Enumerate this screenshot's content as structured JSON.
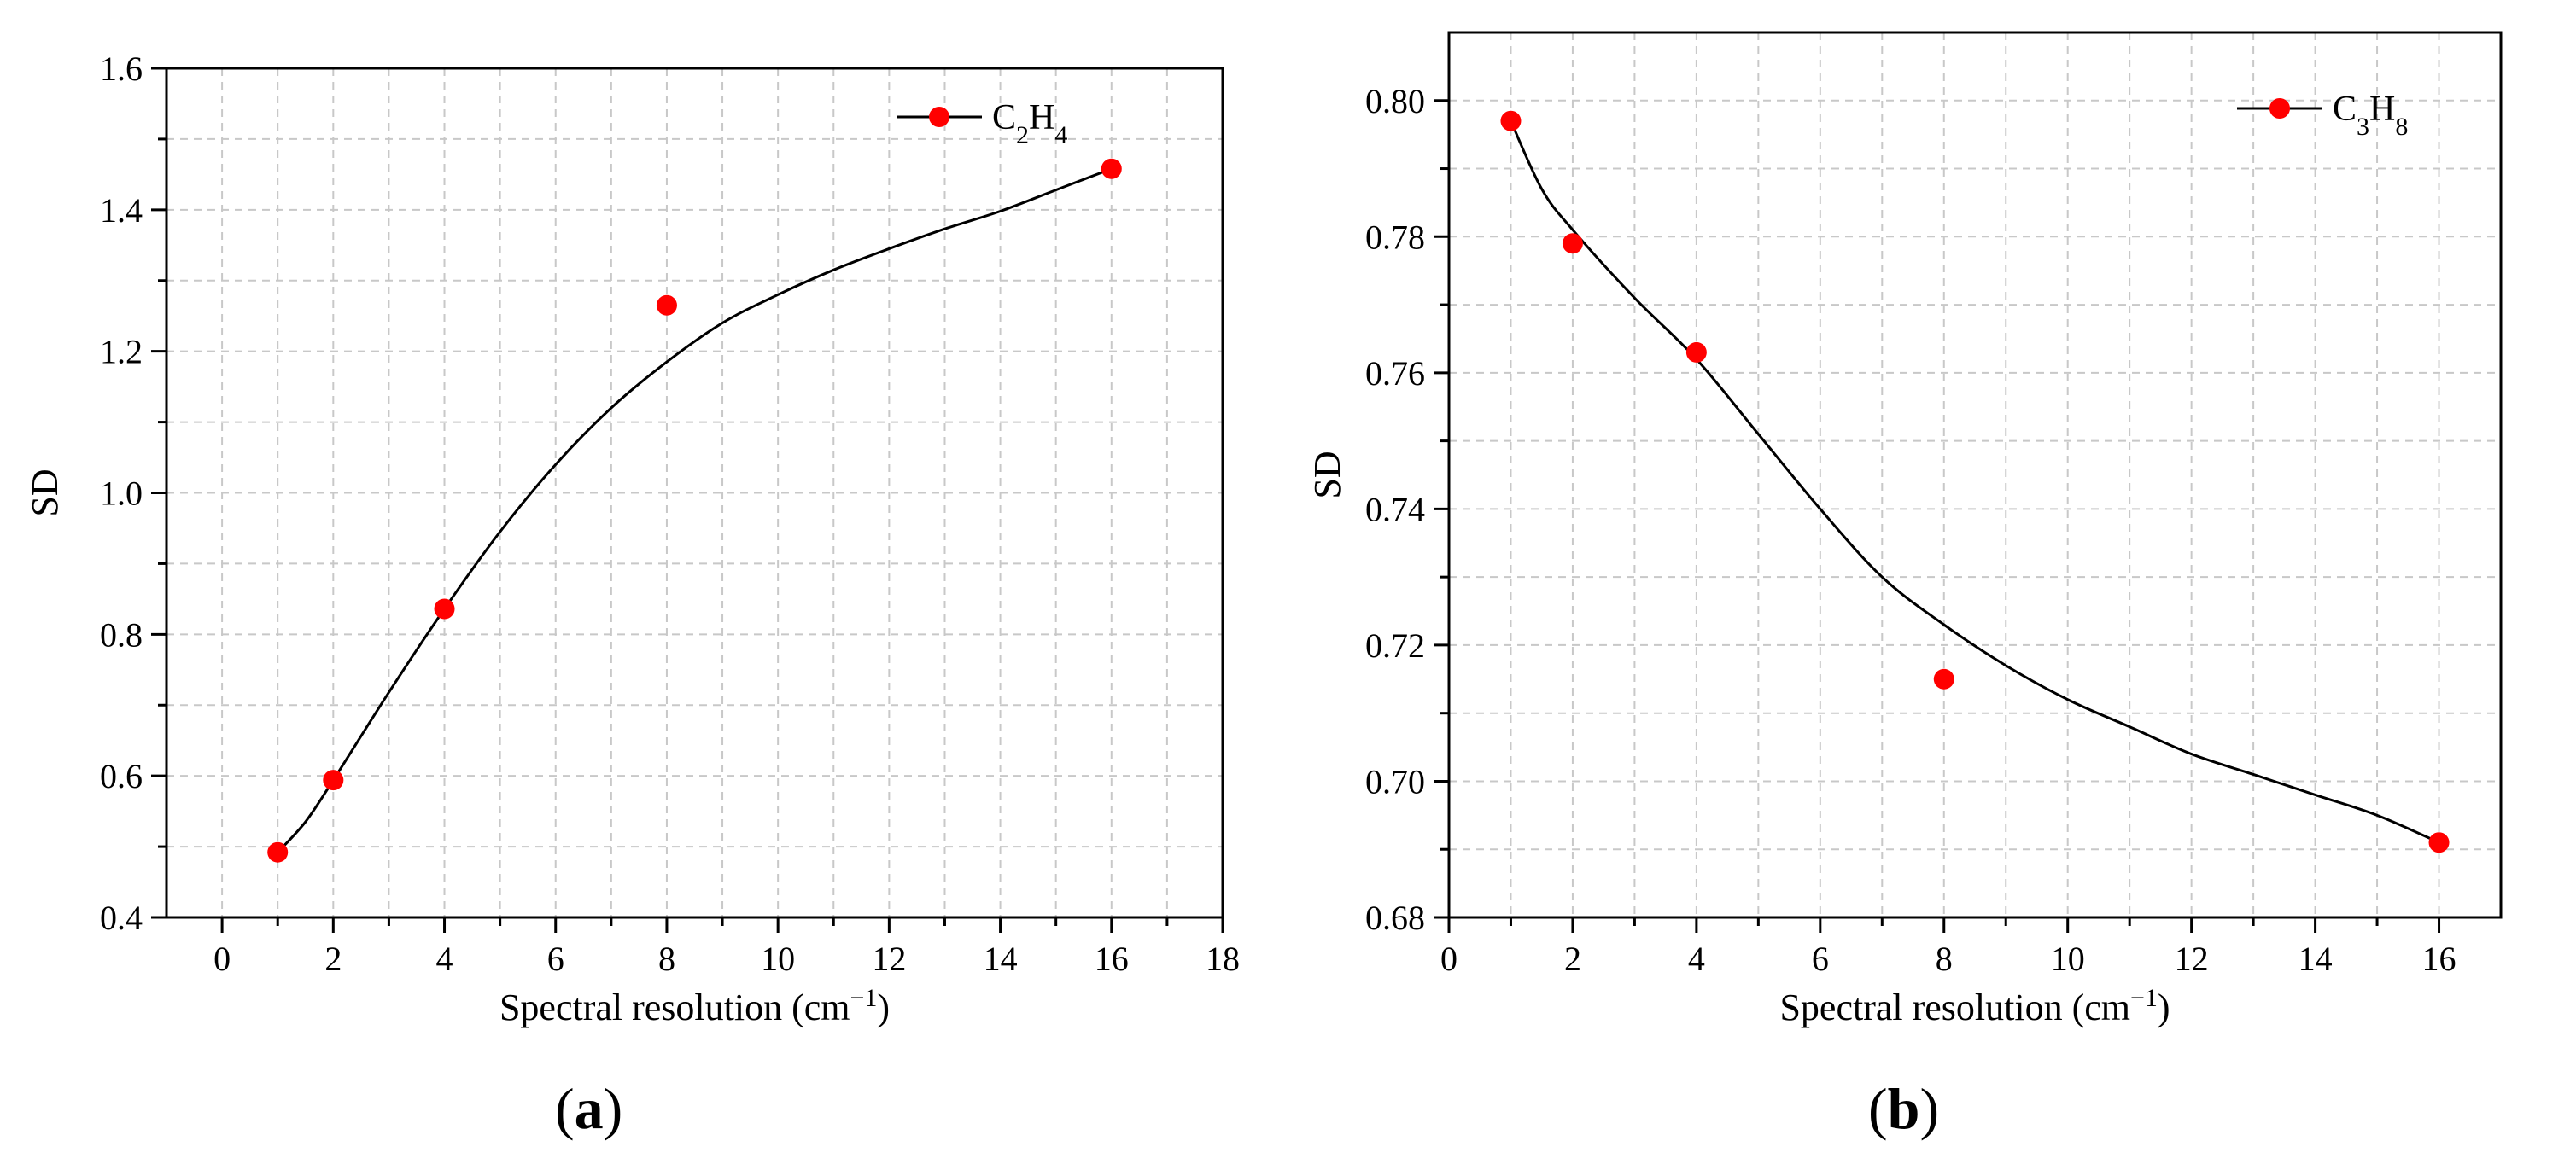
{
  "colors": {
    "marker": "#ff0000",
    "line": "#000000",
    "grid": "#c8c8c8",
    "axis": "#000000"
  },
  "chart_data": [
    {
      "panel_label": "a",
      "type": "line",
      "ylabel": "SD",
      "xlabel": "Spectral resolution (cm",
      "xlabel_sup": "−1",
      "xlabel_close": ")",
      "xlim": [
        -1,
        18
      ],
      "ylim": [
        0.4,
        1.6
      ],
      "xticks": [
        "0",
        "2",
        "4",
        "6",
        "8",
        "10",
        "12",
        "14",
        "16",
        "18"
      ],
      "yticks": [
        "0.4",
        "0.6",
        "0.8",
        "1.0",
        "1.2",
        "1.4",
        "1.6"
      ],
      "grid": true,
      "legend_position": "top-right",
      "series": [
        {
          "name": "C2H4",
          "legend_parts": [
            "C",
            "2",
            "H",
            "4"
          ],
          "x": [
            1,
            2,
            4,
            8,
            16
          ],
          "y": [
            0.492,
            0.594,
            0.836,
            1.265,
            1.458
          ],
          "fit_x": [
            1,
            1.5,
            2,
            3,
            4,
            5,
            6,
            7,
            8,
            9,
            10,
            11,
            12,
            13,
            14,
            15,
            16
          ],
          "fit_y": [
            0.492,
            0.535,
            0.594,
            0.718,
            0.836,
            0.945,
            1.04,
            1.12,
            1.185,
            1.24,
            1.28,
            1.315,
            1.345,
            1.373,
            1.398,
            1.428,
            1.458
          ]
        }
      ]
    },
    {
      "panel_label": "b",
      "type": "line",
      "ylabel": "SD",
      "xlabel": "Spectral resolution (cm",
      "xlabel_sup": "−1",
      "xlabel_close": ")",
      "xlim": [
        0,
        17
      ],
      "ylim": [
        0.68,
        0.81
      ],
      "xticks": [
        "0",
        "2",
        "4",
        "6",
        "8",
        "10",
        "12",
        "14",
        "16"
      ],
      "yticks": [
        "0.68",
        "0.70",
        "0.72",
        "0.74",
        "0.76",
        "0.78",
        "0.80"
      ],
      "grid": true,
      "legend_position": "top-right",
      "series": [
        {
          "name": "C3H8",
          "legend_parts": [
            "C",
            "3",
            "H",
            "8"
          ],
          "x": [
            1,
            2,
            4,
            8,
            16
          ],
          "y": [
            0.797,
            0.779,
            0.763,
            0.715,
            0.691
          ],
          "fit_x": [
            1,
            1.5,
            2,
            3,
            4,
            5,
            6,
            7,
            8,
            9,
            10,
            11,
            12,
            13,
            14,
            15,
            16
          ],
          "fit_y": [
            0.797,
            0.787,
            0.781,
            0.771,
            0.762,
            0.751,
            0.74,
            0.73,
            0.723,
            0.717,
            0.712,
            0.708,
            0.704,
            0.701,
            0.698,
            0.695,
            0.691
          ]
        }
      ]
    }
  ]
}
